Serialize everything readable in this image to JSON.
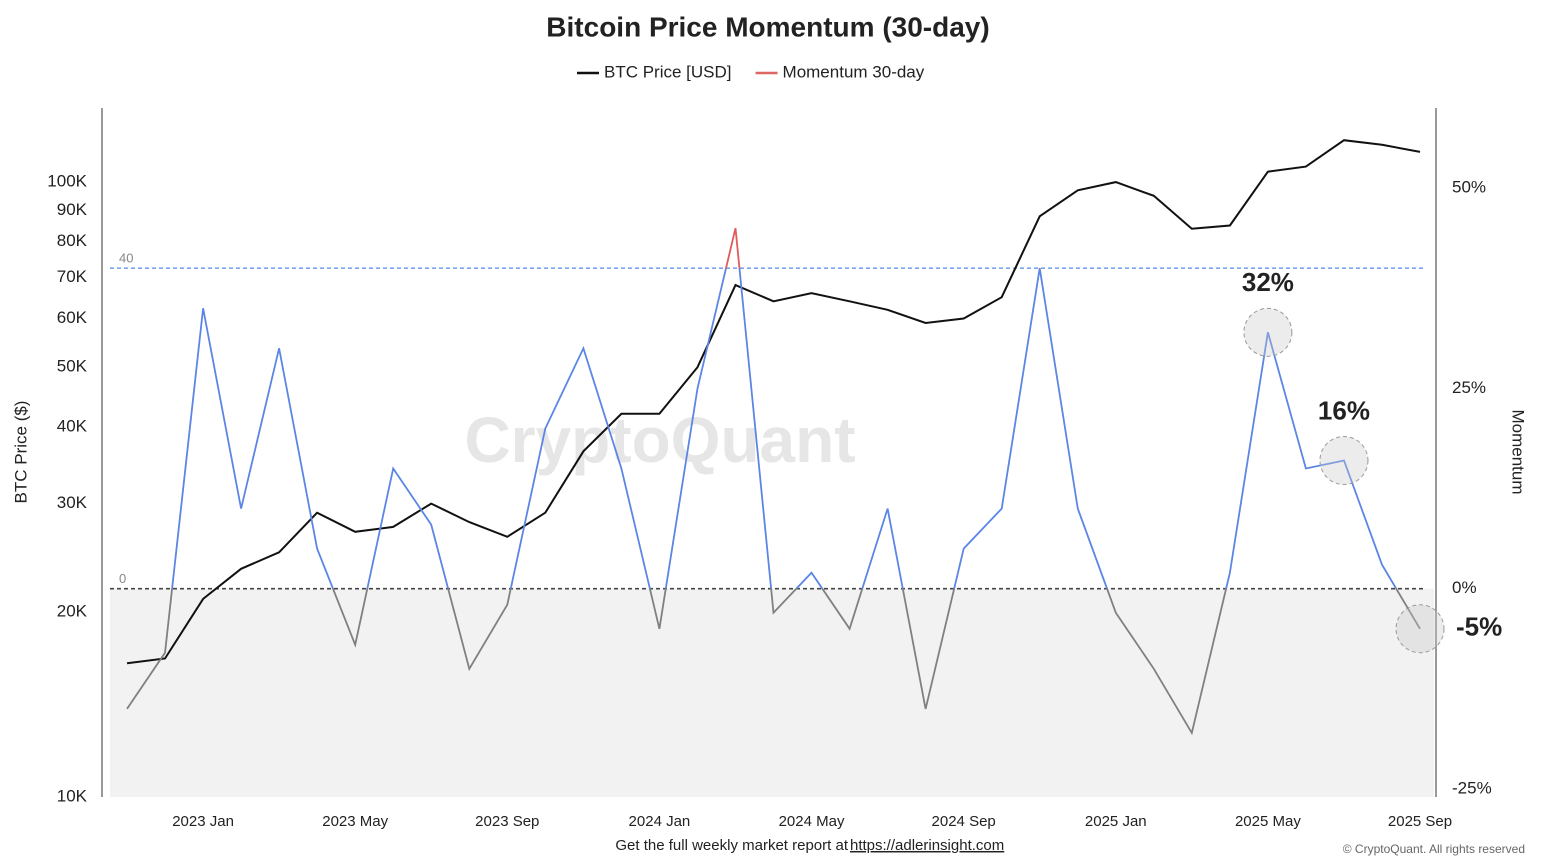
{
  "chart_data": {
    "type": "line",
    "title": "Bitcoin Price Momentum (30-day)",
    "ylabel": "BTC Price ($)",
    "y2label": "Momentum",
    "x": [
      "2022 Nov",
      "2022 Dec",
      "2023 Jan",
      "2023 Feb",
      "2023 Mar",
      "2023 Apr",
      "2023 May",
      "2023 Jun",
      "2023 Jul",
      "2023 Aug",
      "2023 Sep",
      "2023 Oct",
      "2023 Nov",
      "2023 Dec",
      "2024 Jan",
      "2024 Feb",
      "2024 Mar",
      "2024 Apr",
      "2024 May",
      "2024 Jun",
      "2024 Jul",
      "2024 Aug",
      "2024 Sep",
      "2024 Oct",
      "2024 Nov",
      "2024 Dec",
      "2025 Jan",
      "2025 Feb",
      "2025 Mar",
      "2025 Apr",
      "2025 May",
      "2025 Jun",
      "2025 Jul",
      "2025 Aug",
      "2025 Sep"
    ],
    "xticks": [
      "2023 Jan",
      "2023 May",
      "2023 Sep",
      "2024 Jan",
      "2024 May",
      "2024 Sep",
      "2025 Jan",
      "2025 May",
      "2025 Sep"
    ],
    "series": [
      {
        "name": "BTC Price [USD]",
        "color": "#111111",
        "axis": "y",
        "values": [
          16500,
          16800,
          21000,
          23500,
          25000,
          29000,
          27000,
          27500,
          30000,
          28000,
          26500,
          29000,
          36500,
          42000,
          42000,
          50000,
          68000,
          64000,
          66000,
          64000,
          62000,
          59000,
          60000,
          65000,
          88000,
          97000,
          100000,
          95000,
          84000,
          85000,
          104000,
          106000,
          117000,
          115000,
          112000
        ]
      },
      {
        "name": "Momentum 30-day",
        "color": "#e06666",
        "axis": "y2",
        "values": [
          -15,
          -8,
          35,
          10,
          30,
          5,
          -7,
          15,
          8,
          -10,
          -2,
          20,
          30,
          15,
          -5,
          25,
          45,
          -3,
          2,
          -5,
          10,
          -15,
          5,
          10,
          40,
          10,
          -3,
          -10,
          -18,
          2,
          32,
          15,
          16,
          3,
          -5
        ]
      }
    ],
    "momentum_colors": {
      "above": "#e05a5a",
      "middle": "#5b86e5",
      "below": "#808080"
    },
    "thresholds": [
      {
        "value": 40,
        "label": "40",
        "color": "#7aa6f0"
      },
      {
        "value": 0,
        "label": "0",
        "color": "#444444"
      }
    ],
    "ylim": [
      10000,
      132000
    ],
    "log_y": true,
    "yticks": [
      {
        "value": 10000,
        "label": "10K"
      },
      {
        "value": 20000,
        "label": "20K"
      },
      {
        "value": 30000,
        "label": "30K"
      },
      {
        "value": 40000,
        "label": "40K"
      },
      {
        "value": 50000,
        "label": "50K"
      },
      {
        "value": 60000,
        "label": "60K"
      },
      {
        "value": 70000,
        "label": "70K"
      },
      {
        "value": 80000,
        "label": "80K"
      },
      {
        "value": 90000,
        "label": "90K"
      },
      {
        "value": 100000,
        "label": "100K"
      }
    ],
    "y2lim": [
      -26,
      60
    ],
    "y2ticks": [
      {
        "value": -25,
        "label": "-25%"
      },
      {
        "value": 0,
        "label": "0%"
      },
      {
        "value": 25,
        "label": "25%"
      },
      {
        "value": 50,
        "label": "50%"
      }
    ],
    "annotations": [
      {
        "label": "32%",
        "x": "2025 May"
      },
      {
        "label": "16%",
        "x": "2025 Jul"
      },
      {
        "label": "-5%",
        "x": "2025 Sep"
      }
    ],
    "watermark": "CryptoQuant",
    "footer": "Get the full weekly market report at",
    "footer_link": "https://adlerinsight.com",
    "copyright": "© CryptoQuant. All rights reserved"
  }
}
